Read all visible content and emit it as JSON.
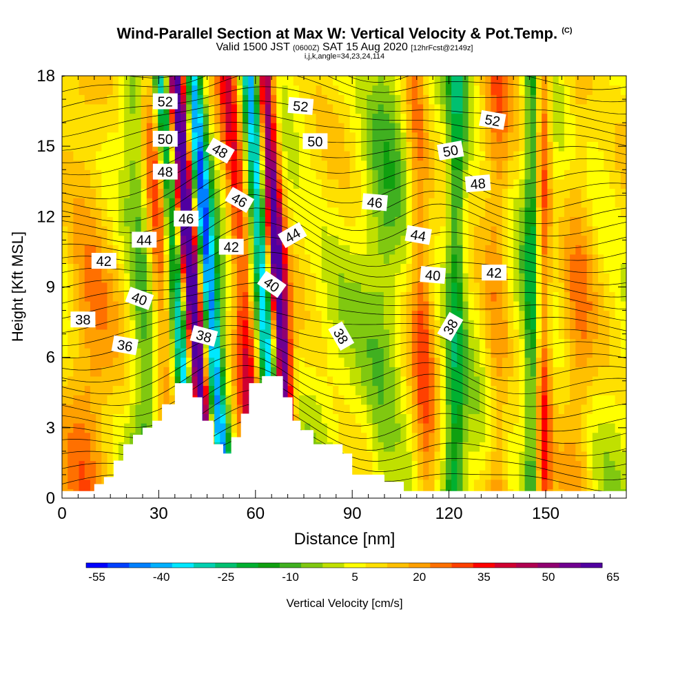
{
  "chart_data": {
    "type": "heatmap",
    "title": "Wind-Parallel Section at Max W: Vertical Velocity & Pot.Temp.",
    "title_mark": "(C)",
    "subtitle": {
      "valid": "Valid 1500 JST",
      "utc": "(0600Z)",
      "date": "SAT 15 Aug 2020",
      "forecast": "[12hrFcst@2149z]"
    },
    "section_info": "i,j,k,angle=34,23,24,114",
    "xlabel": "Distance [nm]",
    "ylabel": "Height [Kft MSL]",
    "xlim": [
      0,
      175
    ],
    "ylim": [
      0,
      18
    ],
    "x_ticks": [
      0,
      30,
      60,
      90,
      120,
      150
    ],
    "y_ticks": [
      0,
      3,
      6,
      9,
      12,
      15,
      18
    ],
    "colorbar": {
      "label": "Vertical Velocity [cm/s]",
      "tick_labels": [
        "-55",
        "-40",
        "-25",
        "-10",
        "5",
        "20",
        "35",
        "50",
        "65"
      ],
      "colors": [
        "#0000ff",
        "#0040ff",
        "#0080ff",
        "#00b0ff",
        "#00e8ff",
        "#00d0b0",
        "#00c070",
        "#00b030",
        "#10a010",
        "#40b020",
        "#80c810",
        "#c0e000",
        "#ffff00",
        "#ffe000",
        "#ffc000",
        "#ffa000",
        "#ff7000",
        "#ff4000",
        "#ff0000",
        "#d00030",
        "#b00050",
        "#900070",
        "#700090",
        "#5000a0"
      ]
    },
    "isentrope_labels": [
      {
        "text": "52",
        "x": 32,
        "y": 16.9,
        "rot": 0
      },
      {
        "text": "50",
        "x": 32,
        "y": 15.3,
        "rot": 0
      },
      {
        "text": "48",
        "x": 32,
        "y": 13.9,
        "rot": 0
      },
      {
        "text": "46",
        "x": 38.5,
        "y": 11.9,
        "rot": 0
      },
      {
        "text": "44",
        "x": 25.5,
        "y": 11.0,
        "rot": 0
      },
      {
        "text": "42",
        "x": 13,
        "y": 10.1,
        "rot": 0
      },
      {
        "text": "40",
        "x": 24,
        "y": 8.5,
        "rot": 20
      },
      {
        "text": "38",
        "x": 6.5,
        "y": 7.6,
        "rot": 0
      },
      {
        "text": "36",
        "x": 19.5,
        "y": 6.5,
        "rot": 10
      },
      {
        "text": "48",
        "x": 49,
        "y": 14.8,
        "rot": 30
      },
      {
        "text": "46",
        "x": 55,
        "y": 12.7,
        "rot": 30
      },
      {
        "text": "42",
        "x": 52.5,
        "y": 10.7,
        "rot": 0
      },
      {
        "text": "40",
        "x": 65,
        "y": 9.1,
        "rot": 35
      },
      {
        "text": "38",
        "x": 44,
        "y": 6.9,
        "rot": 15
      },
      {
        "text": "52",
        "x": 74,
        "y": 16.7,
        "rot": 5
      },
      {
        "text": "50",
        "x": 78.5,
        "y": 15.2,
        "rot": 0
      },
      {
        "text": "44",
        "x": 71.5,
        "y": 11.2,
        "rot": -30
      },
      {
        "text": "38",
        "x": 86.5,
        "y": 6.9,
        "rot": 60
      },
      {
        "text": "46",
        "x": 97,
        "y": 12.6,
        "rot": 5
      },
      {
        "text": "44",
        "x": 110.5,
        "y": 11.2,
        "rot": 10
      },
      {
        "text": "40",
        "x": 115,
        "y": 9.5,
        "rot": 5
      },
      {
        "text": "38",
        "x": 120.5,
        "y": 7.3,
        "rot": -60
      },
      {
        "text": "50",
        "x": 120.5,
        "y": 14.8,
        "rot": -10
      },
      {
        "text": "48",
        "x": 129,
        "y": 13.4,
        "rot": -5
      },
      {
        "text": "52",
        "x": 133.5,
        "y": 16.1,
        "rot": 10
      },
      {
        "text": "42",
        "x": 134,
        "y": 9.6,
        "rot": 0
      }
    ]
  }
}
